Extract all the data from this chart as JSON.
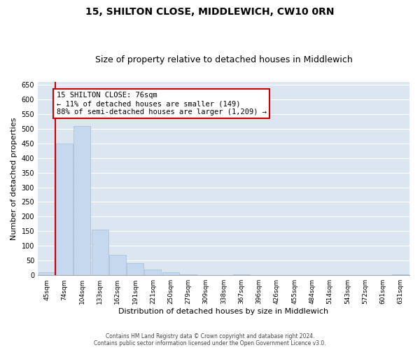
{
  "title": "15, SHILTON CLOSE, MIDDLEWICH, CW10 0RN",
  "subtitle": "Size of property relative to detached houses in Middlewich",
  "xlabel": "Distribution of detached houses by size in Middlewich",
  "ylabel": "Number of detached properties",
  "categories": [
    "45sqm",
    "74sqm",
    "104sqm",
    "133sqm",
    "162sqm",
    "191sqm",
    "221sqm",
    "250sqm",
    "279sqm",
    "309sqm",
    "338sqm",
    "367sqm",
    "396sqm",
    "426sqm",
    "455sqm",
    "484sqm",
    "514sqm",
    "543sqm",
    "572sqm",
    "601sqm",
    "631sqm"
  ],
  "values": [
    10,
    450,
    510,
    155,
    70,
    40,
    20,
    10,
    2,
    0,
    0,
    2,
    0,
    0,
    0,
    0,
    0,
    0,
    0,
    0,
    2
  ],
  "bar_color": "#c5d8ed",
  "bar_edge_color": "#a0bcd8",
  "annotation_title": "15 SHILTON CLOSE: 76sqm",
  "annotation_line1": "← 11% of detached houses are smaller (149)",
  "annotation_line2": "88% of semi-detached houses are larger (1,209) →",
  "annotation_box_color": "#ffffff",
  "annotation_box_edge_color": "#cc0000",
  "redline_color": "#cc0000",
  "redline_x": 0.5,
  "ylim": [
    0,
    660
  ],
  "yticks": [
    0,
    50,
    100,
    150,
    200,
    250,
    300,
    350,
    400,
    450,
    500,
    550,
    600,
    650
  ],
  "background_color": "#dce6f1",
  "footer_line1": "Contains HM Land Registry data © Crown copyright and database right 2024.",
  "footer_line2": "Contains public sector information licensed under the Open Government Licence v3.0.",
  "title_fontsize": 10,
  "subtitle_fontsize": 9,
  "xlabel_fontsize": 8,
  "ylabel_fontsize": 8,
  "annotation_fontsize": 7.5
}
